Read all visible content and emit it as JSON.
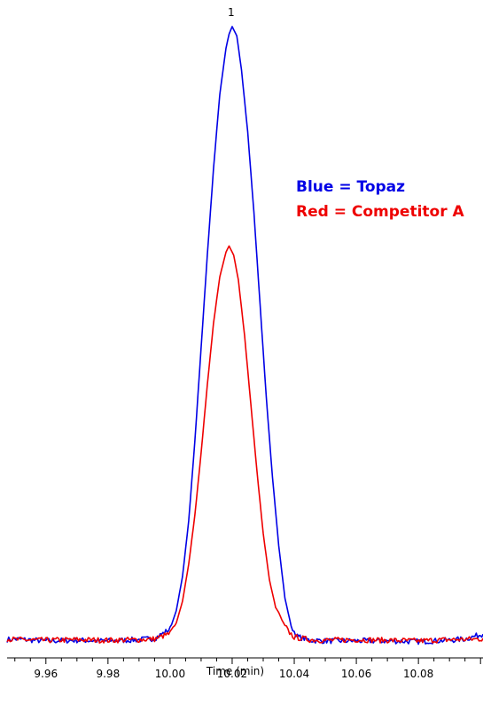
{
  "chart_data": {
    "type": "line",
    "xlabel": "Time (min)",
    "xlim": [
      9.9475,
      10.1008
    ],
    "ylim": [
      0,
      100
    ],
    "x_ticks": [
      "9.96",
      "9.98",
      "10.00",
      "10.02",
      "10.04",
      "10.06",
      "10.08"
    ],
    "x_tick_values": [
      9.96,
      9.98,
      10.0,
      10.02,
      10.04,
      10.06,
      10.08
    ],
    "y_axis_shown": false,
    "grid": false,
    "annotations": [
      {
        "text": "1",
        "x": 10.02
      }
    ],
    "legend_text": [
      "Blue = Topaz",
      "Red = Competitor A"
    ],
    "series": [
      {
        "name": "Topaz",
        "color": "#0000e6",
        "points": [
          [
            9.9475,
            0.8
          ],
          [
            9.95,
            0.9
          ],
          [
            9.96,
            0.6
          ],
          [
            9.97,
            0.7
          ],
          [
            9.98,
            0.6
          ],
          [
            9.99,
            0.8
          ],
          [
            9.995,
            1.0
          ],
          [
            10.0,
            2.5
          ],
          [
            10.002,
            5.5
          ],
          [
            10.004,
            11
          ],
          [
            10.006,
            20
          ],
          [
            10.008,
            33
          ],
          [
            10.01,
            48
          ],
          [
            10.012,
            63
          ],
          [
            10.014,
            77
          ],
          [
            10.016,
            89
          ],
          [
            10.018,
            96.5
          ],
          [
            10.019,
            98.8
          ],
          [
            10.02,
            100
          ],
          [
            10.0215,
            98.5
          ],
          [
            10.023,
            93
          ],
          [
            10.025,
            83
          ],
          [
            10.027,
            70
          ],
          [
            10.029,
            55
          ],
          [
            10.031,
            40
          ],
          [
            10.033,
            27
          ],
          [
            10.035,
            16
          ],
          [
            10.037,
            7.5
          ],
          [
            10.039,
            3
          ],
          [
            10.041,
            1.3
          ],
          [
            10.045,
            0.7
          ],
          [
            10.05,
            0.6
          ],
          [
            10.06,
            0.6
          ],
          [
            10.07,
            0.6
          ],
          [
            10.08,
            0.5
          ],
          [
            10.09,
            0.7
          ],
          [
            10.095,
            0.9
          ],
          [
            10.1,
            1.6
          ],
          [
            10.1008,
            1.7
          ]
        ]
      },
      {
        "name": "Competitor A",
        "color": "#ee0000",
        "points": [
          [
            9.9475,
            0.9
          ],
          [
            9.95,
            0.8
          ],
          [
            9.96,
            0.7
          ],
          [
            9.97,
            0.8
          ],
          [
            9.98,
            0.7
          ],
          [
            9.99,
            0.8
          ],
          [
            9.995,
            0.9
          ],
          [
            10.0,
            1.8
          ],
          [
            10.002,
            3.5
          ],
          [
            10.004,
            7
          ],
          [
            10.006,
            13
          ],
          [
            10.008,
            21
          ],
          [
            10.01,
            31
          ],
          [
            10.012,
            42
          ],
          [
            10.014,
            52
          ],
          [
            10.016,
            59.5
          ],
          [
            10.018,
            63.5
          ],
          [
            10.019,
            64.5
          ],
          [
            10.0205,
            63
          ],
          [
            10.022,
            59
          ],
          [
            10.024,
            50
          ],
          [
            10.026,
            39
          ],
          [
            10.028,
            28
          ],
          [
            10.03,
            18
          ],
          [
            10.032,
            10.5
          ],
          [
            10.034,
            6
          ],
          [
            10.035,
            5.2
          ],
          [
            10.036,
            4
          ],
          [
            10.038,
            2.2
          ],
          [
            10.04,
            1.2
          ],
          [
            10.045,
            0.8
          ],
          [
            10.05,
            0.7
          ],
          [
            10.06,
            0.8
          ],
          [
            10.07,
            0.7
          ],
          [
            10.08,
            0.6
          ],
          [
            10.09,
            0.8
          ],
          [
            10.1,
            0.9
          ],
          [
            10.1008,
            1.0
          ]
        ]
      }
    ]
  }
}
